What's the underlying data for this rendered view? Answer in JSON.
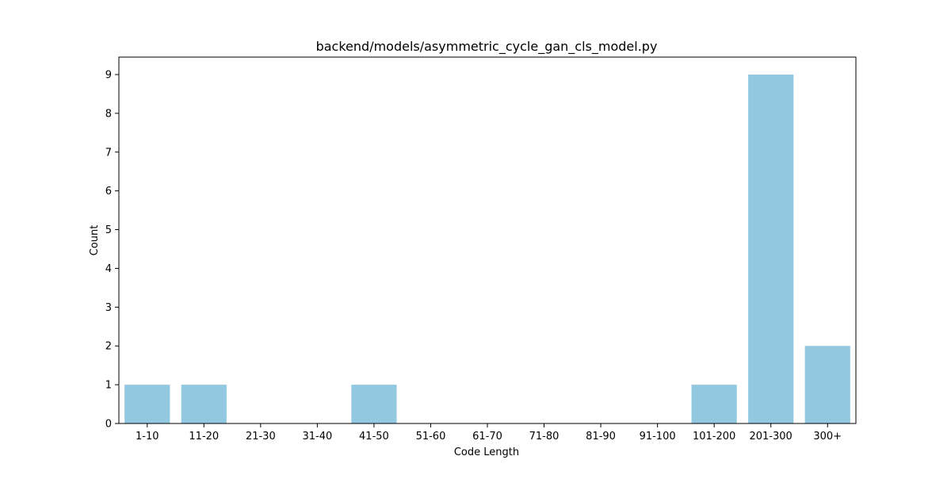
{
  "chart_data": {
    "type": "bar",
    "title": "backend/models/asymmetric_cycle_gan_cls_model.py",
    "xlabel": "Code Length",
    "ylabel": "Count",
    "categories": [
      "1-10",
      "11-20",
      "21-30",
      "31-40",
      "41-50",
      "51-60",
      "61-70",
      "71-80",
      "81-90",
      "91-100",
      "101-200",
      "201-300",
      "300+"
    ],
    "values": [
      1,
      1,
      0,
      0,
      1,
      0,
      0,
      0,
      0,
      0,
      1,
      9,
      2
    ],
    "ylim": [
      0,
      9.45
    ],
    "yticks": [
      0,
      1,
      2,
      3,
      4,
      5,
      6,
      7,
      8,
      9
    ],
    "bar_color": "#92c9e0",
    "grid": false,
    "legend": "none"
  }
}
